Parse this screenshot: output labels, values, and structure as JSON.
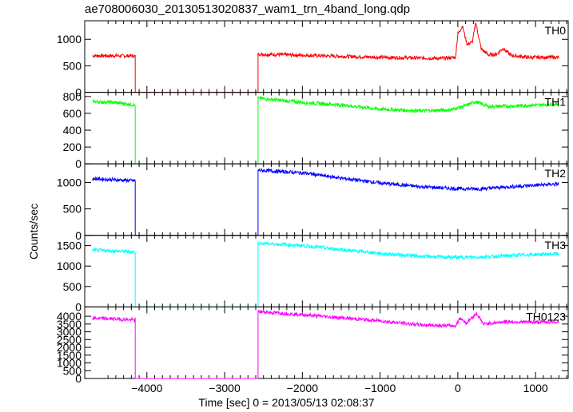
{
  "chart_data": {
    "type": "line",
    "title": "ae708006030_20130513020837_wam1_trn_4band_long.qdp",
    "xlabel": "Time [sec] 0 = 2013/05/13 02:08:37",
    "ylabel": "Counts/sec",
    "xlim": [
      -4800,
      1420
    ],
    "x_ticks": [
      -4000,
      -3000,
      -2000,
      -1000,
      0,
      1000
    ],
    "x_tick_labels": [
      "−4000",
      "−3000",
      "−2000",
      "−1000",
      "0",
      "1000"
    ],
    "grid": false,
    "panels": [
      {
        "name": "TH0",
        "color": "#ff0000",
        "ylim": [
          0,
          1350
        ],
        "yticks": [
          0,
          500,
          1000
        ],
        "points": [
          [
            -4700,
            690
          ],
          [
            -4420,
            690
          ],
          [
            -4150,
            685
          ],
          [
            -4150,
            0
          ],
          [
            -2570,
            0
          ],
          [
            -2570,
            720
          ],
          [
            -2000,
            700
          ],
          [
            -1000,
            660
          ],
          [
            -200,
            640
          ],
          [
            -30,
            660
          ],
          [
            0,
            1100
          ],
          [
            60,
            1250
          ],
          [
            120,
            900
          ],
          [
            190,
            960
          ],
          [
            230,
            1320
          ],
          [
            300,
            820
          ],
          [
            400,
            700
          ],
          [
            500,
            720
          ],
          [
            580,
            830
          ],
          [
            680,
            700
          ],
          [
            900,
            660
          ],
          [
            1300,
            660
          ]
        ]
      },
      {
        "name": "TH1",
        "color": "#00ff00",
        "ylim": [
          0,
          850
        ],
        "yticks": [
          0,
          200,
          400,
          600,
          800
        ],
        "points": [
          [
            -4700,
            740
          ],
          [
            -4420,
            730
          ],
          [
            -4150,
            700
          ],
          [
            -4150,
            0
          ],
          [
            -2570,
            0
          ],
          [
            -2570,
            780
          ],
          [
            -2000,
            730
          ],
          [
            -1500,
            700
          ],
          [
            -1000,
            650
          ],
          [
            -500,
            630
          ],
          [
            -100,
            640
          ],
          [
            100,
            690
          ],
          [
            220,
            740
          ],
          [
            400,
            680
          ],
          [
            800,
            690
          ],
          [
            1300,
            710
          ]
        ]
      },
      {
        "name": "TH2",
        "color": "#0000ff",
        "ylim": [
          0,
          1350
        ],
        "yticks": [
          0,
          500,
          1000
        ],
        "points": [
          [
            -4700,
            1070
          ],
          [
            -4420,
            1050
          ],
          [
            -4150,
            1030
          ],
          [
            -4150,
            0
          ],
          [
            -2570,
            0
          ],
          [
            -2570,
            1230
          ],
          [
            -2000,
            1180
          ],
          [
            -1500,
            1080
          ],
          [
            -1000,
            990
          ],
          [
            -500,
            920
          ],
          [
            0,
            880
          ],
          [
            300,
            880
          ],
          [
            800,
            930
          ],
          [
            1300,
            970
          ]
        ]
      },
      {
        "name": "TH3",
        "color": "#00ffff",
        "ylim": [
          0,
          1750
        ],
        "yticks": [
          0,
          500,
          1000,
          1500
        ],
        "points": [
          [
            -4700,
            1390
          ],
          [
            -4420,
            1370
          ],
          [
            -4150,
            1340
          ],
          [
            -4150,
            0
          ],
          [
            -2570,
            0
          ],
          [
            -2570,
            1560
          ],
          [
            -2000,
            1500
          ],
          [
            -1500,
            1400
          ],
          [
            -1000,
            1310
          ],
          [
            -500,
            1240
          ],
          [
            0,
            1210
          ],
          [
            300,
            1220
          ],
          [
            800,
            1270
          ],
          [
            1300,
            1300
          ]
        ]
      },
      {
        "name": "TH0123",
        "color": "#ff00ff",
        "ylim": [
          0,
          4600
        ],
        "yticks": [
          0,
          500,
          1000,
          1500,
          2000,
          2500,
          3000,
          3500,
          4000
        ],
        "points": [
          [
            -4700,
            3870
          ],
          [
            -4420,
            3830
          ],
          [
            -4150,
            3760
          ],
          [
            -4150,
            0
          ],
          [
            -2570,
            0
          ],
          [
            -2570,
            4300
          ],
          [
            -2000,
            4100
          ],
          [
            -1500,
            3900
          ],
          [
            -1000,
            3700
          ],
          [
            -500,
            3450
          ],
          [
            -30,
            3380
          ],
          [
            30,
            3900
          ],
          [
            110,
            3550
          ],
          [
            240,
            4200
          ],
          [
            330,
            3500
          ],
          [
            600,
            3650
          ],
          [
            1000,
            3620
          ],
          [
            1300,
            3650
          ]
        ]
      }
    ]
  }
}
